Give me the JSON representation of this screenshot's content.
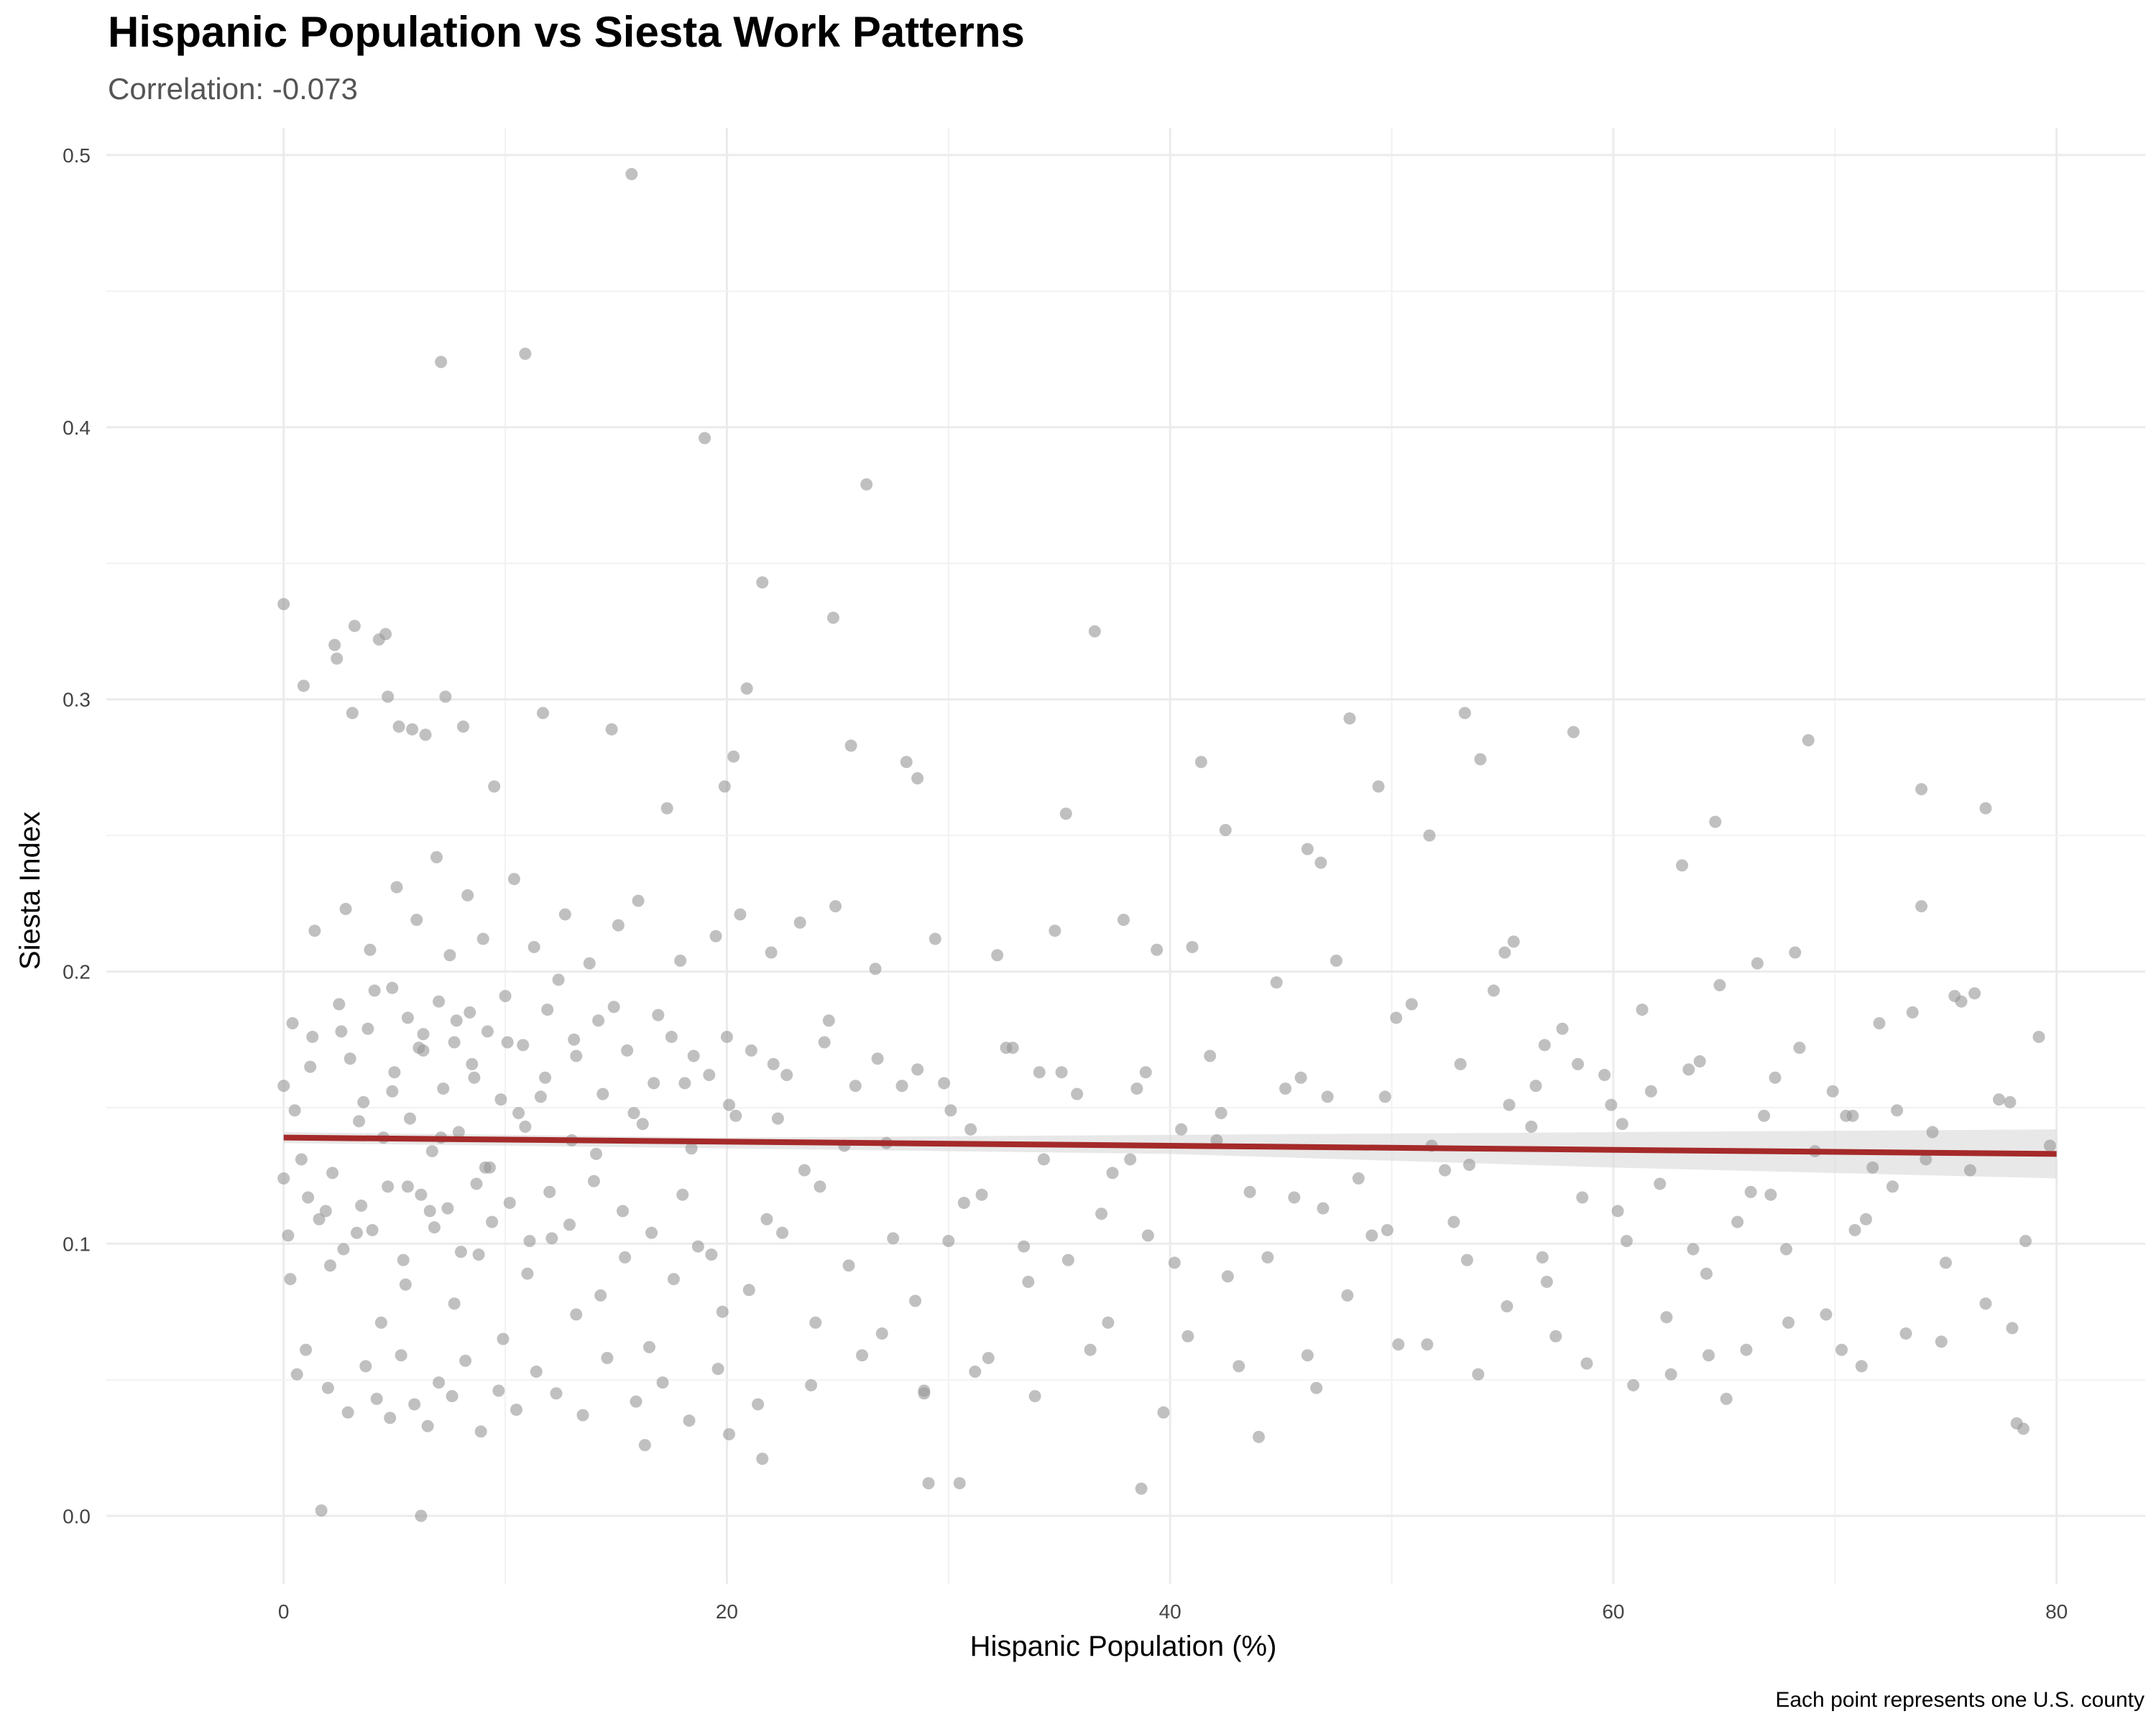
{
  "chart_data": {
    "type": "scatter",
    "title": "Hispanic Population vs Siesta Work Patterns",
    "subtitle": "Correlation: -0.073",
    "xlabel": "Hispanic Population (%)",
    "ylabel": "Siesta Index",
    "caption": "Each point represents one U.S. county",
    "xlim": [
      -8,
      84
    ],
    "ylim": [
      -0.025,
      0.51
    ],
    "xticks": [
      0,
      20,
      40,
      60,
      80
    ],
    "xtick_labels": [
      "0",
      "20",
      "40",
      "60",
      "80"
    ],
    "yticks": [
      0.0,
      0.1,
      0.2,
      0.3,
      0.4,
      0.5
    ],
    "ytick_labels": [
      "0.0",
      "0.1",
      "0.2",
      "0.3",
      "0.4",
      "0.5"
    ],
    "grid": true,
    "point_color": "#999999",
    "trend_color": "#a52a2a",
    "band_color": "#d9d9d9",
    "trend_line": {
      "x": [
        0,
        80
      ],
      "y": [
        0.139,
        0.133
      ]
    },
    "confidence_band": {
      "x": [
        0,
        20,
        40,
        60,
        80
      ],
      "lower": [
        0.137,
        0.135,
        0.133,
        0.128,
        0.124
      ],
      "upper": [
        0.141,
        0.139,
        0.14,
        0.141,
        0.142
      ]
    },
    "points_x": [
      15.7,
      10.9,
      7.1,
      19.0,
      26.3,
      0.0,
      21.6,
      24.8,
      36.6,
      3.2,
      4.6,
      2.3,
      4.3,
      2.4,
      4.7,
      0.9,
      3.1,
      5.2,
      5.8,
      6.4,
      7.3,
      8.1,
      9.5,
      11.7,
      14.8,
      17.3,
      20.3,
      20.9,
      19.9,
      25.6,
      28.1,
      28.6,
      48.1,
      53.3,
      58.2,
      54.0,
      68.8,
      49.4,
      64.6,
      76.8,
      73.9,
      63.1,
      51.7,
      41.4,
      35.3,
      39.4,
      42.5,
      46.2,
      46.8,
      55.1,
      55.5,
      73.9,
      68.2,
      66.5,
      59.6,
      58.4,
      75.4,
      78.5,
      78.2,
      71.7,
      70.3,
      65.1,
      62.6,
      44.0,
      38.7,
      30.5,
      29.1,
      28.9,
      21.6,
      20.1,
      1.7,
      6.2,
      16.3,
      0.0,
      0.0,
      0.2,
      0.3,
      0.5,
      0.8,
      1.2,
      1.9,
      2.6,
      3.4,
      4.1,
      4.9,
      5.6,
      6.3,
      7.1,
      7.8,
      8.6,
      9.3,
      10.1,
      10.9,
      11.6,
      12.4,
      13.2,
      14.1,
      14.9,
      15.8,
      16.7,
      17.5,
      18.4,
      19.2,
      20.1,
      21.1,
      22.3,
      23.5,
      24.6,
      25.8,
      27.2,
      28.6,
      30.1,
      31.5,
      32.9,
      34.3,
      35.8,
      37.4,
      38.9,
      40.5,
      42.1,
      43.6,
      45.2,
      46.9,
      48.5,
      50.2,
      51.8,
      53.5,
      55.3,
      56.9,
      58.6,
      60.4,
      62.1,
      63.9,
      65.6,
      67.3,
      69.1,
      70.8,
      72.6,
      74.4,
      76.1,
      77.9,
      79.7,
      2.1,
      3.3,
      4.4,
      5.5,
      6.6,
      7.7,
      8.8,
      9.9,
      11.0,
      12.1,
      13.2,
      14.3,
      15.4,
      16.5,
      17.6,
      18.7,
      19.8,
      21.0,
      22.5,
      24.0,
      25.5,
      27.0,
      28.5,
      30.0,
      31.8,
      33.6,
      35.4,
      37.2,
      39.0,
      40.8,
      42.6,
      44.4,
      46.2,
      48.0,
      49.8,
      51.6,
      53.4,
      55.2,
      57.0,
      58.8,
      60.6,
      62.4,
      64.2,
      66.0,
      67.8,
      69.6,
      71.4,
      73.2,
      75.0,
      76.8,
      78.6,
      1.4,
      2.8,
      3.9,
      5.1,
      6.0,
      6.9,
      7.5,
      8.3,
      9.0,
      10.4,
      11.3,
      12.7,
      13.8,
      15.1,
      16.0,
      17.9,
      19.5,
      20.6,
      22.0,
      23.3,
      24.9,
      26.7,
      29.4,
      32.2,
      34.8,
      37.9,
      41.0,
      44.8,
      47.5,
      50.9,
      54.6,
      57.7,
      61.3,
      64.8,
      68.4,
      72.0,
      75.7,
      79.2,
      0.6,
      1.0,
      2.0,
      2.9,
      3.7,
      4.2,
      4.8,
      5.3,
      5.9,
      6.5,
      7.0,
      7.6,
      8.2,
      8.9,
      9.7,
      10.5,
      11.4,
      12.3,
      13.5,
      14.6,
      15.9,
      17.1,
      18.3,
      19.6,
      21.4,
      23.8,
      26.1,
      28.9,
      31.2,
      33.9,
      36.4,
      39.7,
      43.1,
      46.6,
      50.3,
      53.9,
      57.4,
      60.9,
      64.3,
      67.9,
      71.2,
      74.8,
      78.0,
      3.0,
      3.6,
      4.5,
      5.0,
      5.7,
      6.1,
      6.7,
      7.2,
      7.9,
      8.5,
      9.1,
      9.8,
      10.6,
      11.8,
      13.0,
      14.4,
      16.2,
      18.1,
      20.4,
      22.7,
      25.3,
      27.9,
      31.0,
      34.1,
      38.2,
      42.3,
      47.1,
      52.4,
      56.3,
      61.7,
      66.2,
      70.5,
      74.1,
      77.4,
      1.1,
      1.6,
      2.2,
      2.7,
      3.5,
      4.0,
      4.7,
      5.4,
      6.2,
      6.8,
      7.4,
      8.0,
      8.7,
      9.4,
      10.2,
      11.1,
      12.0,
      12.9,
      14.0,
      15.3,
      16.6,
      18.0,
      19.3,
      21.8,
      24.2,
      27.5,
      30.7,
      33.4,
      36.9,
      40.2,
      45.6,
      49.1,
      52.8,
      56.8,
      60.2,
      63.6,
      67.1,
      70.9,
      73.5,
      76.3,
      0.4,
      1.3,
      2.5,
      3.8,
      4.9,
      5.6,
      6.3,
      7.0,
      7.7,
      8.4,
      9.2,
      10.0,
      10.8,
      11.9,
      13.1,
      14.2,
      15.5,
      16.9,
      18.5,
      20.0,
      22.1,
      24.4,
      26.8,
      29.8,
      32.6,
      35.1,
      38.5,
      41.8,
      45.9,
      49.7,
      53.1,
      56.5,
      59.9,
      63.4,
      66.8,
      69.9,
      72.8,
      76.0,
      79.5
    ],
    "points_y": [
      0.493,
      0.427,
      0.424,
      0.396,
      0.379,
      0.335,
      0.343,
      0.33,
      0.325,
      0.327,
      0.324,
      0.32,
      0.322,
      0.315,
      0.301,
      0.305,
      0.295,
      0.29,
      0.289,
      0.287,
      0.301,
      0.29,
      0.268,
      0.295,
      0.289,
      0.26,
      0.279,
      0.304,
      0.268,
      0.283,
      0.277,
      0.271,
      0.293,
      0.295,
      0.288,
      0.278,
      0.285,
      0.268,
      0.255,
      0.26,
      0.267,
      0.239,
      0.25,
      0.277,
      0.258,
      0.208,
      0.252,
      0.245,
      0.24,
      0.207,
      0.211,
      0.224,
      0.207,
      0.203,
      0.162,
      0.166,
      0.191,
      0.032,
      0.034,
      0.128,
      0.061,
      0.043,
      0.052,
      0.029,
      0.01,
      0.012,
      0.012,
      0.045,
      0.021,
      0.03,
      0.002,
      0.0,
      0.026,
      0.158,
      0.124,
      0.103,
      0.087,
      0.149,
      0.131,
      0.165,
      0.112,
      0.178,
      0.145,
      0.193,
      0.156,
      0.121,
      0.171,
      0.139,
      0.182,
      0.161,
      0.128,
      0.174,
      0.143,
      0.154,
      0.197,
      0.169,
      0.133,
      0.187,
      0.148,
      0.159,
      0.176,
      0.135,
      0.162,
      0.151,
      0.171,
      0.146,
      0.127,
      0.182,
      0.158,
      0.137,
      0.164,
      0.149,
      0.118,
      0.172,
      0.131,
      0.155,
      0.126,
      0.163,
      0.142,
      0.138,
      0.119,
      0.157,
      0.113,
      0.124,
      0.183,
      0.136,
      0.129,
      0.151,
      0.173,
      0.117,
      0.144,
      0.122,
      0.167,
      0.108,
      0.161,
      0.134,
      0.147,
      0.121,
      0.141,
      0.127,
      0.152,
      0.136,
      0.092,
      0.104,
      0.071,
      0.085,
      0.112,
      0.078,
      0.096,
      0.065,
      0.089,
      0.102,
      0.074,
      0.081,
      0.095,
      0.062,
      0.087,
      0.099,
      0.075,
      0.083,
      0.104,
      0.071,
      0.092,
      0.067,
      0.079,
      0.101,
      0.058,
      0.086,
      0.094,
      0.071,
      0.103,
      0.066,
      0.088,
      0.095,
      0.059,
      0.081,
      0.105,
      0.063,
      0.094,
      0.077,
      0.086,
      0.056,
      0.101,
      0.073,
      0.089,
      0.061,
      0.098,
      0.074,
      0.109,
      0.067,
      0.093,
      0.078,
      0.101,
      0.215,
      0.223,
      0.208,
      0.231,
      0.219,
      0.242,
      0.206,
      0.228,
      0.212,
      0.234,
      0.209,
      0.221,
      0.203,
      0.217,
      0.226,
      0.204,
      0.213,
      0.221,
      0.207,
      0.218,
      0.224,
      0.201,
      0.212,
      0.206,
      0.215,
      0.219,
      0.209,
      0.196,
      0.204,
      0.188,
      0.193,
      0.179,
      0.186,
      0.195,
      0.172,
      0.181,
      0.189,
      0.176,
      0.052,
      0.061,
      0.047,
      0.038,
      0.055,
      0.043,
      0.036,
      0.059,
      0.041,
      0.033,
      0.049,
      0.044,
      0.057,
      0.031,
      0.046,
      0.039,
      0.053,
      0.045,
      0.037,
      0.058,
      0.042,
      0.049,
      0.035,
      0.054,
      0.041,
      0.048,
      0.059,
      0.046,
      0.053,
      0.044,
      0.061,
      0.038,
      0.055,
      0.047,
      0.063,
      0.052,
      0.066,
      0.048,
      0.059,
      0.071,
      0.055,
      0.064,
      0.069,
      0.168,
      0.152,
      0.139,
      0.163,
      0.146,
      0.172,
      0.134,
      0.157,
      0.141,
      0.166,
      0.128,
      0.153,
      0.148,
      0.161,
      0.138,
      0.155,
      0.144,
      0.159,
      0.147,
      0.162,
      0.136,
      0.158,
      0.142,
      0.163,
      0.131,
      0.148,
      0.154,
      0.127,
      0.143,
      0.156,
      0.119,
      0.147,
      0.131,
      0.153,
      0.117,
      0.109,
      0.126,
      0.098,
      0.114,
      0.105,
      0.121,
      0.094,
      0.118,
      0.106,
      0.113,
      0.097,
      0.122,
      0.108,
      0.115,
      0.101,
      0.119,
      0.107,
      0.123,
      0.112,
      0.104,
      0.118,
      0.096,
      0.109,
      0.121,
      0.102,
      0.115,
      0.099,
      0.111,
      0.093,
      0.117,
      0.103,
      0.108,
      0.095,
      0.112,
      0.098,
      0.118,
      0.105,
      0.185,
      0.192,
      0.181,
      0.176,
      0.188,
      0.179,
      0.194,
      0.183,
      0.177,
      0.189,
      0.174,
      0.185,
      0.178,
      0.191,
      0.173,
      0.186,
      0.175,
      0.182,
      0.171,
      0.184,
      0.169,
      0.176,
      0.166,
      0.174,
      0.168,
      0.159,
      0.172,
      0.163,
      0.157,
      0.169,
      0.161,
      0.154,
      0.166,
      0.158,
      0.151,
      0.164,
      0.147,
      0.156,
      0.149
    ]
  }
}
